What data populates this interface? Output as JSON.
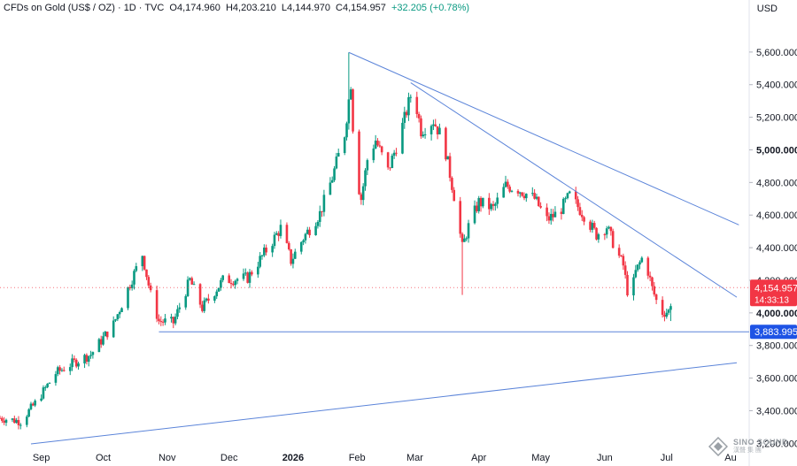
{
  "header": {
    "symbol": "CFDs on Gold (US$ / OZ) · 1D · TVC",
    "open_label": "O",
    "open": "4,174.960",
    "high_label": "H",
    "high": "4,203.210",
    "low_label": "L",
    "low": "4,144.970",
    "close_label": "C",
    "close": "4,154.957",
    "change": "+32.205 (+0.78%)"
  },
  "currency": "USD",
  "watermark": {
    "brand": "SINO SOUND",
    "sub": "漢聲 集 團"
  },
  "colors": {
    "up": "#089981",
    "down": "#f23645",
    "trendline": "#5b84d9",
    "support_badge": "#1e53e5",
    "price_badge": "#f23645"
  },
  "chart_data": {
    "type": "candlestick",
    "y_ticks": [
      "5,600.000",
      "5,400.000",
      "5,200.000",
      "5,000.000",
      "4,800.000",
      "4,600.000",
      "4,400.000",
      "4,200.000",
      "4,000.000",
      "3,800.000",
      "3,600.000",
      "3,400.000",
      "3,200.000"
    ],
    "y_tick_values": [
      5600,
      5400,
      5200,
      5000,
      4800,
      4600,
      4400,
      4200,
      4000,
      3800,
      3600,
      3400,
      3200
    ],
    "bold_ticks": [
      "5,000.000",
      "4,000.000"
    ],
    "ylim": [
      3180,
      5800
    ],
    "x_ticks": [
      {
        "label": "Sep",
        "date": "2025-09-01",
        "bold": false
      },
      {
        "label": "Oct",
        "date": "2025-10-01",
        "bold": false
      },
      {
        "label": "Nov",
        "date": "2025-11-01",
        "bold": false
      },
      {
        "label": "Dec",
        "date": "2025-12-01",
        "bold": false
      },
      {
        "label": "2026",
        "date": "2026-01-01",
        "bold": true
      },
      {
        "label": "Feb",
        "date": "2026-02-01",
        "bold": false
      },
      {
        "label": "Mar",
        "date": "2026-03-01",
        "bold": false
      },
      {
        "label": "Apr",
        "date": "2026-04-01",
        "bold": false
      },
      {
        "label": "May",
        "date": "2026-05-01",
        "bold": false
      },
      {
        "label": "Jun",
        "date": "2026-06-01",
        "bold": false
      },
      {
        "label": "Jul",
        "date": "2026-07-01",
        "bold": false
      },
      {
        "label": "Au",
        "date": "2026-08-01",
        "bold": false
      }
    ],
    "xlim": [
      "2025-08-12",
      "2026-08-10"
    ],
    "current_price": {
      "value": 4154.957,
      "label": "4,154.957",
      "countdown": "14:33:13"
    },
    "support_level": {
      "value": 3883.995,
      "label": "3,883.995",
      "from": "2025-10-28"
    },
    "trendlines": [
      {
        "from": {
          "date": "2026-01-28",
          "price": 5598
        },
        "to": {
          "date": "2026-08-05",
          "price": 4540
        }
      },
      {
        "from": {
          "date": "2026-02-27",
          "price": 5412
        },
        "to": {
          "date": "2026-08-04",
          "price": 4096
        }
      },
      {
        "from": {
          "date": "2025-08-27",
          "price": 3196
        },
        "to": {
          "date": "2026-08-04",
          "price": 3694
        }
      }
    ],
    "anchors": [
      {
        "date": "2025-08-12",
        "price": 3355
      },
      {
        "date": "2025-08-22",
        "price": 3335
      },
      {
        "date": "2025-08-29",
        "price": 3445
      },
      {
        "date": "2025-09-08",
        "price": 3630
      },
      {
        "date": "2025-09-16",
        "price": 3690
      },
      {
        "date": "2025-09-25",
        "price": 3745
      },
      {
        "date": "2025-10-06",
        "price": 3930
      },
      {
        "date": "2025-10-14",
        "price": 4180
      },
      {
        "date": "2025-10-20",
        "price": 4360
      },
      {
        "date": "2025-10-24",
        "price": 4110
      },
      {
        "date": "2025-10-28",
        "price": 3950
      },
      {
        "date": "2025-11-04",
        "price": 3940
      },
      {
        "date": "2025-11-12",
        "price": 4200
      },
      {
        "date": "2025-11-18",
        "price": 4030
      },
      {
        "date": "2025-11-28",
        "price": 4200
      },
      {
        "date": "2025-12-10",
        "price": 4215
      },
      {
        "date": "2025-12-22",
        "price": 4440
      },
      {
        "date": "2025-12-26",
        "price": 4520
      },
      {
        "date": "2025-12-31",
        "price": 4320
      },
      {
        "date": "2026-01-06",
        "price": 4460
      },
      {
        "date": "2026-01-14",
        "price": 4610
      },
      {
        "date": "2026-01-20",
        "price": 4830
      },
      {
        "date": "2026-01-26",
        "price": 5100
      },
      {
        "date": "2026-01-29",
        "price": 5410
      },
      {
        "date": "2026-01-31",
        "price": 4880
      },
      {
        "date": "2026-02-03",
        "price": 4700
      },
      {
        "date": "2026-02-06",
        "price": 4940
      },
      {
        "date": "2026-02-10",
        "price": 5060
      },
      {
        "date": "2026-02-16",
        "price": 4870
      },
      {
        "date": "2026-02-20",
        "price": 5020
      },
      {
        "date": "2026-02-24",
        "price": 5190
      },
      {
        "date": "2026-02-28",
        "price": 5380
      },
      {
        "date": "2026-03-04",
        "price": 5120
      },
      {
        "date": "2026-03-10",
        "price": 5180
      },
      {
        "date": "2026-03-15",
        "price": 5050
      },
      {
        "date": "2026-03-20",
        "price": 4720
      },
      {
        "date": "2026-03-24",
        "price": 4400
      },
      {
        "date": "2026-03-27",
        "price": 4530
      },
      {
        "date": "2026-04-01",
        "price": 4680
      },
      {
        "date": "2026-04-08",
        "price": 4640
      },
      {
        "date": "2026-04-14",
        "price": 4780
      },
      {
        "date": "2026-04-20",
        "price": 4760
      },
      {
        "date": "2026-04-28",
        "price": 4700
      },
      {
        "date": "2026-05-04",
        "price": 4570
      },
      {
        "date": "2026-05-10",
        "price": 4620
      },
      {
        "date": "2026-05-15",
        "price": 4720
      },
      {
        "date": "2026-05-22",
        "price": 4600
      },
      {
        "date": "2026-05-28",
        "price": 4480
      },
      {
        "date": "2026-06-02",
        "price": 4530
      },
      {
        "date": "2026-06-06",
        "price": 4400
      },
      {
        "date": "2026-06-10",
        "price": 4290
      },
      {
        "date": "2026-06-13",
        "price": 4060
      },
      {
        "date": "2026-06-16",
        "price": 4250
      },
      {
        "date": "2026-06-20",
        "price": 4360
      },
      {
        "date": "2026-06-24",
        "price": 4150
      },
      {
        "date": "2026-06-28",
        "price": 4000
      },
      {
        "date": "2026-07-02",
        "price": 4010
      },
      {
        "date": "2026-07-04",
        "price": 4120
      },
      {
        "date": "2026-07-05",
        "price": 4155
      }
    ],
    "wicks": [
      {
        "date": "2026-01-28",
        "price": 5598
      },
      {
        "date": "2026-02-01",
        "price": 4420
      },
      {
        "date": "2026-03-24",
        "price": 4110
      },
      {
        "date": "2026-07-03",
        "price": 3950
      }
    ]
  }
}
